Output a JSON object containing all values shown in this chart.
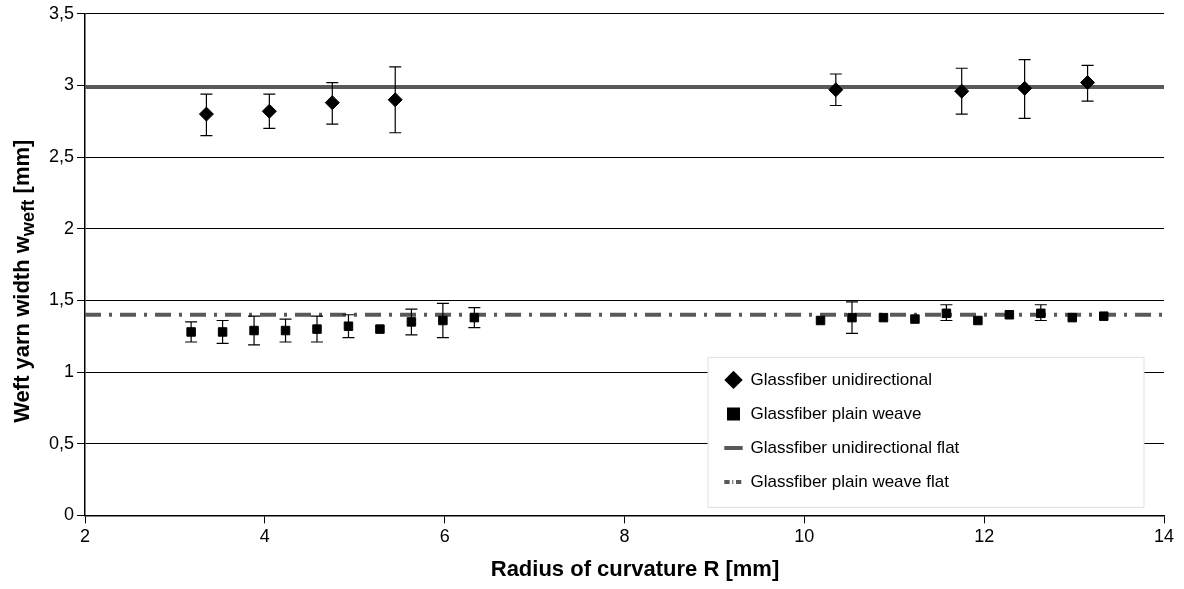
{
  "chart_data": {
    "type": "scatter",
    "xlabel": "Radius of curvature R [mm]",
    "ylabel": "Weft yarn width w$_{weft}$ [mm]",
    "xlim": [
      2,
      14
    ],
    "xticks": [
      2,
      4,
      6,
      8,
      10,
      12,
      14
    ],
    "ylim": [
      0,
      3.5
    ],
    "yticks": [
      0,
      {
        "value": 0.5,
        "label": "0,5"
      },
      1,
      {
        "value": 1.5,
        "label": "1,5"
      },
      2,
      {
        "value": 2.5,
        "label": "2,5"
      },
      3,
      {
        "value": 3.5,
        "label": "3,5"
      }
    ],
    "grid": "y",
    "legend": "bottom right",
    "series": [
      {
        "name": "Glassfiber unidirectional",
        "marker": "diamond",
        "color": "#000000",
        "x": [
          3.35,
          4.05,
          4.75,
          5.45,
          10.35,
          11.75,
          12.45,
          13.15
        ],
        "values": [
          2.8,
          2.82,
          2.88,
          2.9,
          2.97,
          2.96,
          2.98,
          3.02
        ],
        "errors": [
          [
            2.65,
            2.94
          ],
          [
            2.7,
            2.94
          ],
          [
            2.73,
            3.02
          ],
          [
            2.67,
            3.13
          ],
          [
            2.86,
            3.08
          ],
          [
            2.8,
            3.12
          ],
          [
            2.77,
            3.18
          ],
          [
            2.89,
            3.14
          ]
        ]
      },
      {
        "name": "Glassfiber plain weave",
        "marker": "square",
        "color": "#000000",
        "x": [
          3.18,
          3.53,
          3.88,
          4.23,
          4.58,
          4.93,
          5.28,
          5.63,
          5.98,
          6.33,
          10.18,
          10.53,
          10.88,
          11.23,
          11.58,
          11.93,
          12.28,
          12.63,
          12.98,
          13.33
        ],
        "values": [
          1.28,
          1.28,
          1.29,
          1.29,
          1.3,
          1.32,
          1.3,
          1.35,
          1.36,
          1.38,
          1.36,
          1.38,
          1.38,
          1.37,
          1.41,
          1.36,
          1.4,
          1.41,
          1.38,
          1.39
        ],
        "errors": [
          [
            1.21,
            1.35
          ],
          [
            1.2,
            1.36
          ],
          [
            1.19,
            1.39
          ],
          [
            1.21,
            1.37
          ],
          [
            1.21,
            1.39
          ],
          [
            1.24,
            1.4
          ],
          null,
          [
            1.26,
            1.44
          ],
          [
            1.24,
            1.48
          ],
          [
            1.31,
            1.45
          ],
          null,
          [
            1.27,
            1.49
          ],
          null,
          null,
          [
            1.36,
            1.47
          ],
          null,
          null,
          [
            1.36,
            1.47
          ],
          null,
          null
        ]
      },
      {
        "name": "Glassfiber unidirectional flat",
        "type": "line",
        "line_style": "solid",
        "marker": "none",
        "color": "#595959",
        "x": [
          2,
          14
        ],
        "values": [
          2.99,
          2.99
        ]
      },
      {
        "name": "Glassfiber plain weave flat",
        "type": "line",
        "line_style": "dashed",
        "marker": "none",
        "color": "#595959",
        "x": [
          2,
          14
        ],
        "values": [
          1.4,
          1.4
        ]
      }
    ]
  }
}
